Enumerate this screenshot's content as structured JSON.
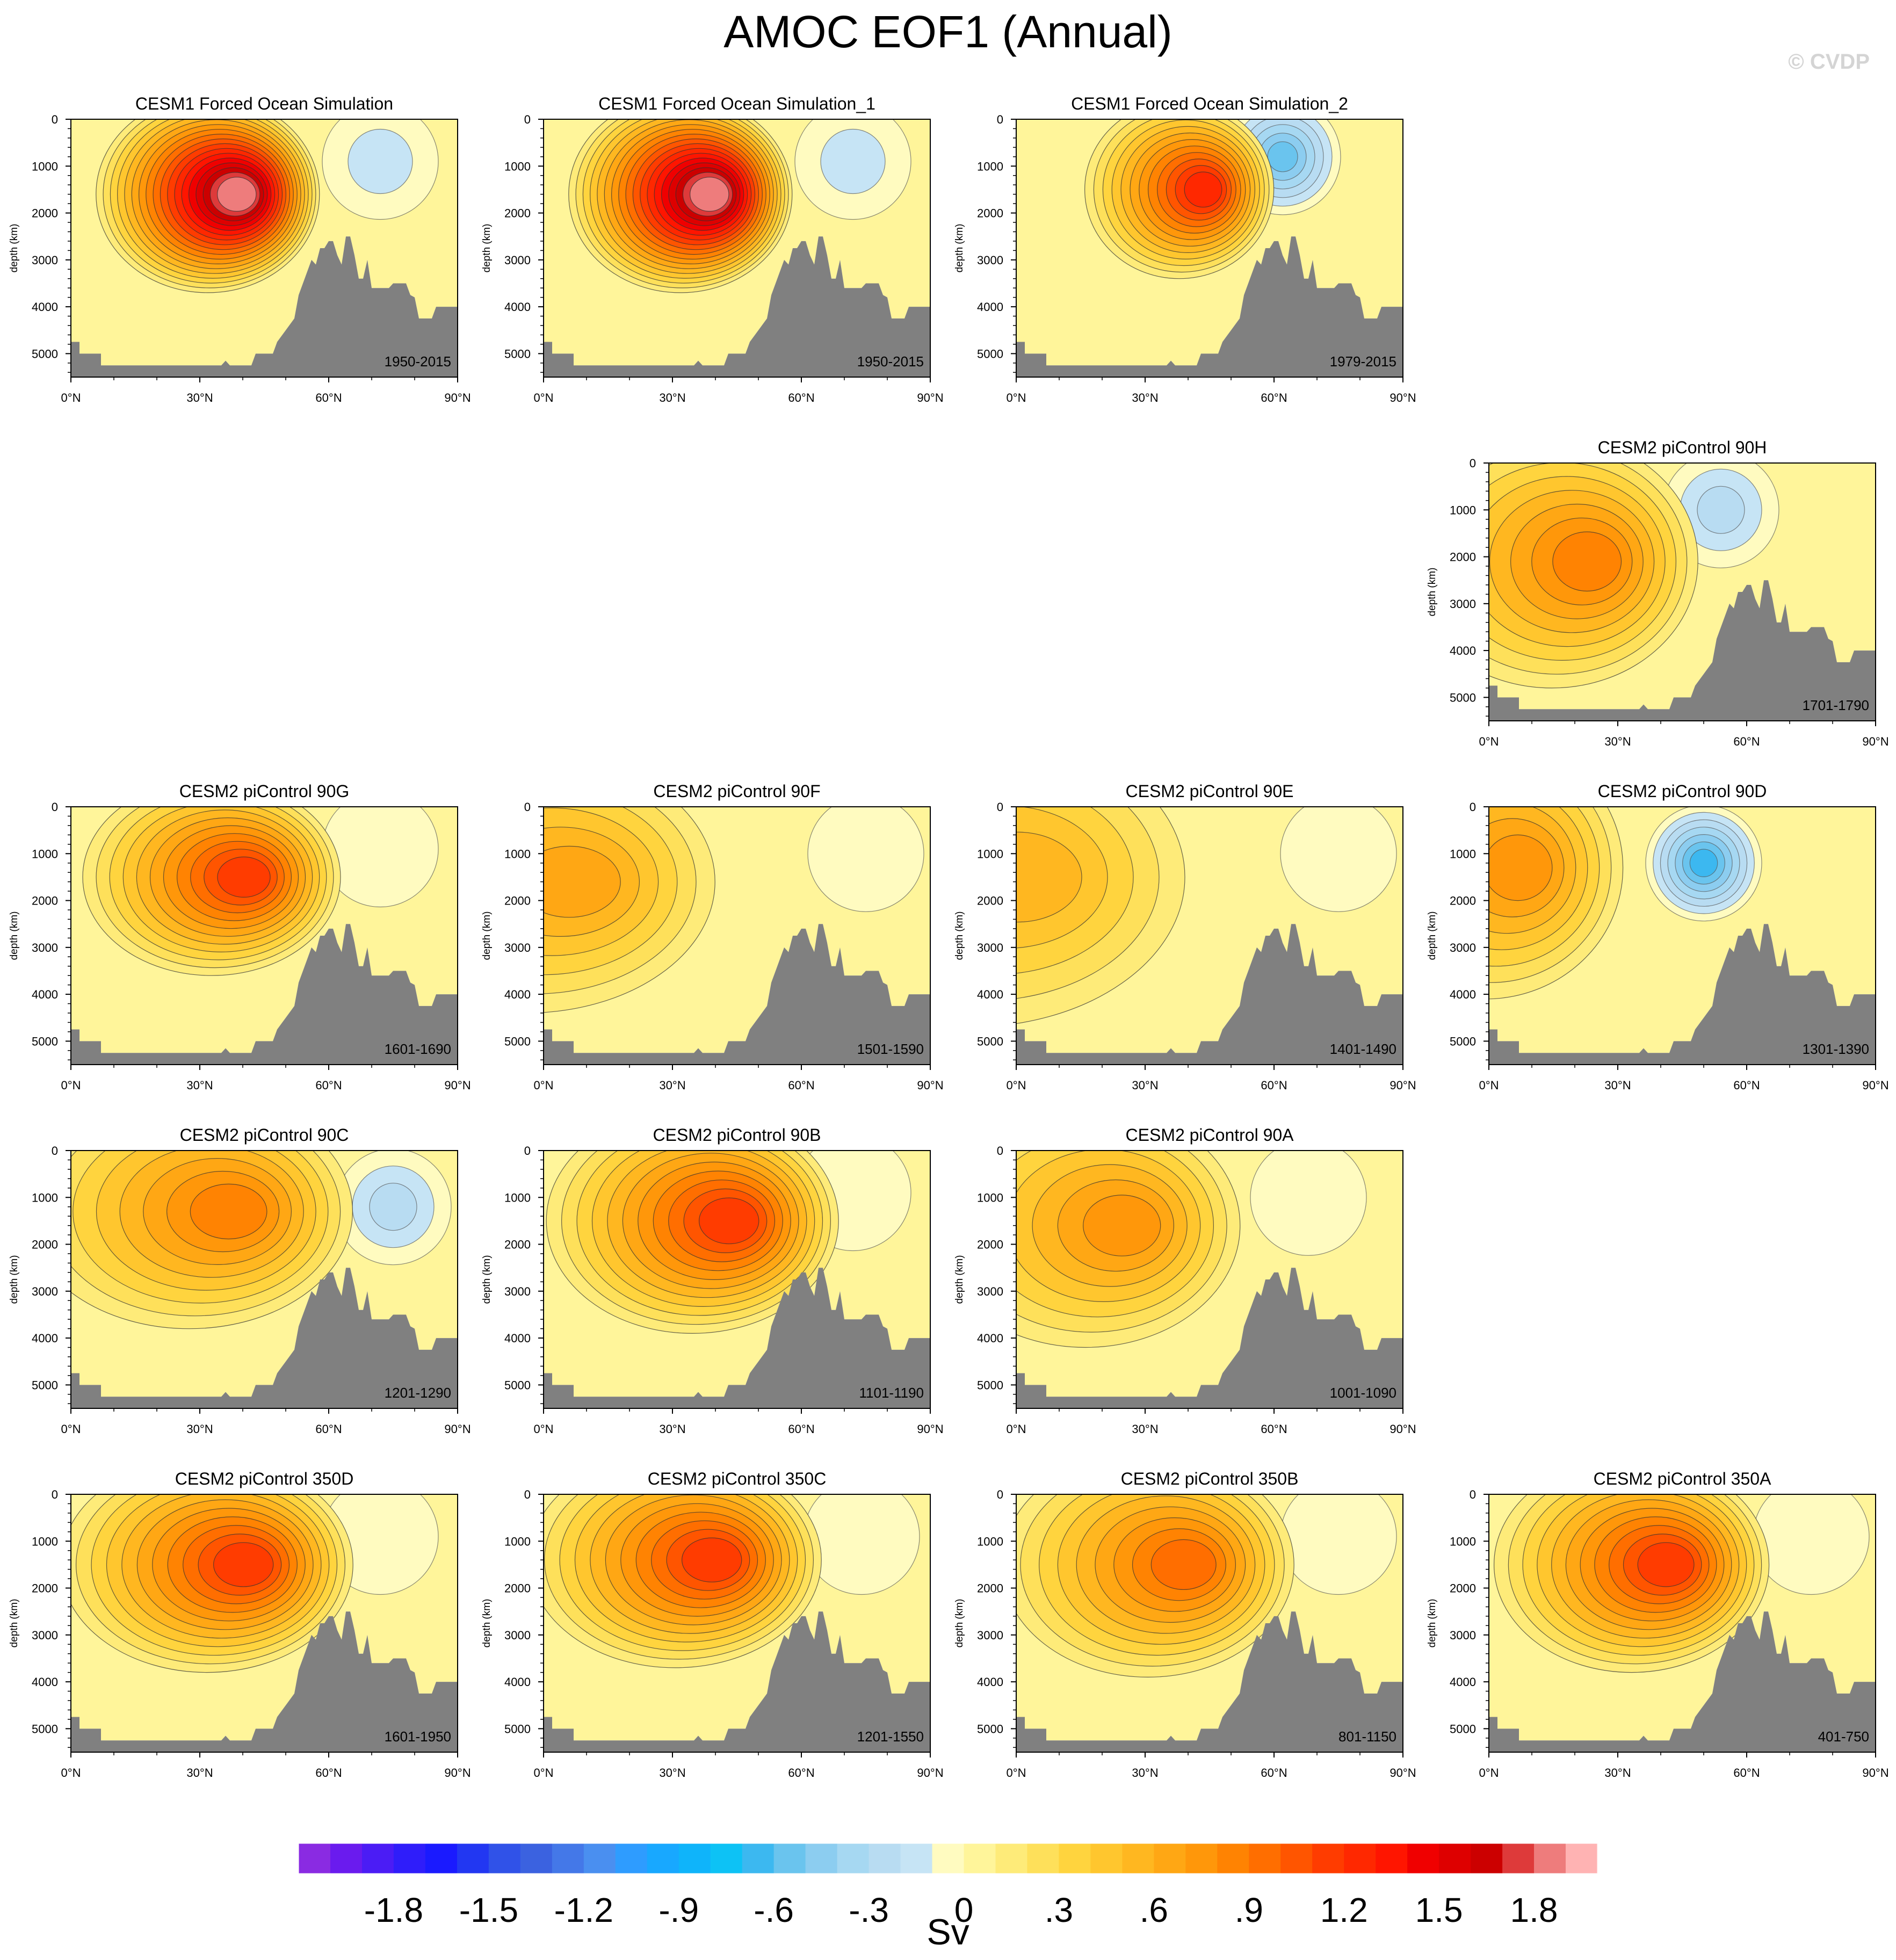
{
  "title": "AMOC EOF1 (Annual)",
  "credit": "© CVDP",
  "chart_data": {
    "type": "contour-panels",
    "variable": "AMOC EOF1 (Annual)",
    "units": "Sv",
    "xaxis": {
      "range": [
        0,
        90
      ],
      "ticks": [
        "0°N",
        "30°N",
        "60°N",
        "90°N"
      ],
      "tick_values": [
        0,
        30,
        60,
        90
      ]
    },
    "yaxis": {
      "label": "depth (km)",
      "range": [
        0,
        5500
      ],
      "ticks": [
        "0",
        "1000",
        "2000",
        "3000",
        "4000",
        "5000"
      ],
      "tick_values": [
        0,
        1000,
        2000,
        3000,
        4000,
        5000
      ],
      "inverted": true
    },
    "panels": [
      {
        "title": "CESM1 Forced Ocean Simulation",
        "years": "1950-2015",
        "peak_sv": 1.75,
        "peak_lat": 39,
        "peak_depth": 1600,
        "spread_lat": 13,
        "spread_depth": 1050,
        "neg_sv": -0.2,
        "neg_lat": 72,
        "neg_depth": 900
      },
      {
        "title": "CESM1 Forced Ocean Simulation_1",
        "years": "1950-2015",
        "peak_sv": 1.75,
        "peak_lat": 39,
        "peak_depth": 1600,
        "spread_lat": 13,
        "spread_depth": 1050,
        "neg_sv": -0.2,
        "neg_lat": 72,
        "neg_depth": 900
      },
      {
        "title": "CESM1 Forced Ocean Simulation_2",
        "years": "1979-2015",
        "peak_sv": 1.2,
        "peak_lat": 44,
        "peak_depth": 1500,
        "spread_lat": 11,
        "spread_depth": 950,
        "neg_sv": -0.55,
        "neg_lat": 62,
        "neg_depth": 800
      },
      {
        "title": "CESM2 piControl 90H",
        "years": "1701-1790",
        "peak_sv": 0.75,
        "peak_lat": 24,
        "peak_depth": 2100,
        "spread_lat": 17,
        "spread_depth": 1350,
        "neg_sv": -0.35,
        "neg_lat": 54,
        "neg_depth": 1000
      },
      {
        "title": "CESM2 piControl 90G",
        "years": "1601-1690",
        "peak_sv": 1.15,
        "peak_lat": 41,
        "peak_depth": 1500,
        "spread_lat": 15,
        "spread_depth": 1050,
        "neg_sv": -0.15,
        "neg_lat": 72,
        "neg_depth": 900
      },
      {
        "title": "CESM2 piControl 90F",
        "years": "1501-1590",
        "peak_sv": 0.6,
        "peak_lat": 8,
        "peak_depth": 1600,
        "spread_lat": 22,
        "spread_depth": 1400,
        "neg_sv": -0.15,
        "neg_lat": 75,
        "neg_depth": 1000
      },
      {
        "title": "CESM2 piControl 90E",
        "years": "1401-1490",
        "peak_sv": 0.45,
        "peak_lat": 3,
        "peak_depth": 1500,
        "spread_lat": 25,
        "spread_depth": 1600,
        "neg_sv": -0.1,
        "neg_lat": 75,
        "neg_depth": 1000
      },
      {
        "title": "CESM2 piControl 90D",
        "years": "1301-1390",
        "peak_sv": 0.7,
        "peak_lat": 8,
        "peak_depth": 1300,
        "spread_lat": 16,
        "spread_depth": 1400,
        "neg_sv": -0.7,
        "neg_lat": 50,
        "neg_depth": 1200
      },
      {
        "title": "CESM2 piControl 90C",
        "years": "1201-1290",
        "peak_sv": 0.75,
        "peak_lat": 38,
        "peak_depth": 1300,
        "spread_lat": 19,
        "spread_depth": 1250,
        "neg_sv": -0.3,
        "neg_lat": 75,
        "neg_depth": 1200
      },
      {
        "title": "CESM2 piControl 90B",
        "years": "1101-1190",
        "peak_sv": 1.1,
        "peak_lat": 44,
        "peak_depth": 1500,
        "spread_lat": 17,
        "spread_depth": 1200,
        "neg_sv": -0.15,
        "neg_lat": 72,
        "neg_depth": 900
      },
      {
        "title": "CESM2 piControl 90A",
        "years": "1001-1090",
        "peak_sv": 0.65,
        "peak_lat": 26,
        "peak_depth": 1600,
        "spread_lat": 18,
        "spread_depth": 1300,
        "neg_sv": -0.15,
        "neg_lat": 68,
        "neg_depth": 1000
      },
      {
        "title": "CESM2 piControl 350D",
        "years": "1601-1950",
        "peak_sv": 1.05,
        "peak_lat": 41,
        "peak_depth": 1500,
        "spread_lat": 17,
        "spread_depth": 1150,
        "neg_sv": -0.15,
        "neg_lat": 72,
        "neg_depth": 900
      },
      {
        "title": "CESM2 piControl 350C",
        "years": "1201-1550",
        "peak_sv": 1.1,
        "peak_lat": 40,
        "peak_depth": 1400,
        "spread_lat": 17,
        "spread_depth": 1150,
        "neg_sv": -0.15,
        "neg_lat": 74,
        "neg_depth": 900
      },
      {
        "title": "CESM2 piControl 350B",
        "years": "801-1150",
        "peak_sv": 0.95,
        "peak_lat": 40,
        "peak_depth": 1500,
        "spread_lat": 17,
        "spread_depth": 1200,
        "neg_sv": -0.12,
        "neg_lat": 75,
        "neg_depth": 900
      },
      {
        "title": "CESM2 piControl 350A",
        "years": "401-750",
        "peak_sv": 1.1,
        "peak_lat": 42,
        "peak_depth": 1500,
        "spread_lat": 16,
        "spread_depth": 1150,
        "neg_sv": -0.15,
        "neg_lat": 75,
        "neg_depth": 900
      }
    ],
    "colorbar": {
      "label": "Sv",
      "range": [
        -2.1,
        2.1
      ],
      "interval": 0.1,
      "tick_labels": [
        "-1.8",
        "-1.5",
        "-1.2",
        "-.9",
        "-.6",
        "-.3",
        "0",
        ".3",
        ".6",
        ".9",
        "1.2",
        "1.5",
        "1.8"
      ],
      "tick_values": [
        -1.8,
        -1.5,
        -1.2,
        -0.9,
        -0.6,
        -0.3,
        0,
        0.3,
        0.6,
        0.9,
        1.2,
        1.5,
        1.8
      ],
      "colors": [
        "#8A2BE2",
        "#6A1BEE",
        "#4B1CF5",
        "#2F1DFA",
        "#1A1AFF",
        "#2237F2",
        "#3052E8",
        "#3B62E0",
        "#4478E8",
        "#4A8FF0",
        "#2E9CFF",
        "#18A8FF",
        "#0FB4FA",
        "#0DC2F5",
        "#3CB8F0",
        "#6AC4EE",
        "#8CCDF0",
        "#A6D8F2",
        "#B8DCF2",
        "#C6E4F5",
        "#FFFBC0",
        "#FFF59A",
        "#FEEB79",
        "#FEE05A",
        "#FFD43E",
        "#FFC62E",
        "#FFB720",
        "#FFA714",
        "#FF970A",
        "#FF8302",
        "#FF6E00",
        "#FF5500",
        "#FF3C00",
        "#FF2800",
        "#FF1500",
        "#F00000",
        "#DE0000",
        "#CC0000",
        "#DE3A3A",
        "#EE7C7C",
        "#FFB3B3"
      ]
    }
  }
}
